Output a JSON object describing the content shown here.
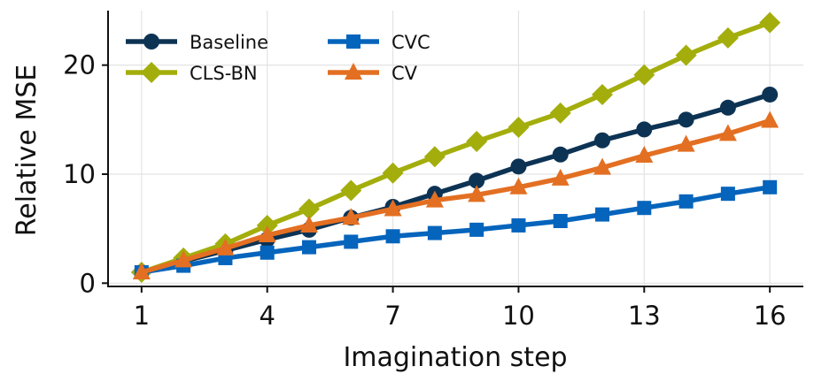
{
  "chart_data": {
    "type": "line",
    "title": "",
    "xlabel": "Imagination step",
    "ylabel": "Relative MSE",
    "x": [
      1,
      2,
      3,
      4,
      5,
      6,
      7,
      8,
      9,
      10,
      11,
      12,
      13,
      14,
      15,
      16
    ],
    "xticks": [
      1,
      4,
      7,
      10,
      13,
      16
    ],
    "yticks": [
      0,
      10,
      20
    ],
    "xlim": [
      0.2,
      16.8
    ],
    "ylim": [
      -0.3,
      25
    ],
    "grid": true,
    "legend": "top-left",
    "series": [
      {
        "name": "Baseline",
        "marker": "circle",
        "color": "#0d3354",
        "values": [
          1.0,
          2.0,
          3.0,
          4.0,
          4.9,
          6.0,
          7.0,
          8.2,
          9.4,
          10.7,
          11.8,
          13.1,
          14.1,
          15.0,
          16.1,
          17.3
        ]
      },
      {
        "name": "CLS-BN",
        "marker": "diamond",
        "color": "#a3ae0c",
        "values": [
          1.0,
          2.3,
          3.6,
          5.3,
          6.8,
          8.5,
          10.1,
          11.6,
          13.0,
          14.3,
          15.6,
          17.3,
          19.1,
          20.9,
          22.5,
          23.9
        ]
      },
      {
        "name": "CVC",
        "marker": "square",
        "color": "#0564bc",
        "values": [
          1.0,
          1.6,
          2.3,
          2.8,
          3.3,
          3.8,
          4.3,
          4.6,
          4.9,
          5.3,
          5.7,
          6.3,
          6.9,
          7.5,
          8.2,
          8.8
        ]
      },
      {
        "name": "CV",
        "marker": "triangle",
        "color": "#e36f22",
        "values": [
          1.0,
          2.1,
          3.2,
          4.4,
          5.3,
          6.0,
          6.8,
          7.6,
          8.1,
          8.8,
          9.6,
          10.6,
          11.7,
          12.7,
          13.7,
          14.9
        ]
      }
    ]
  }
}
